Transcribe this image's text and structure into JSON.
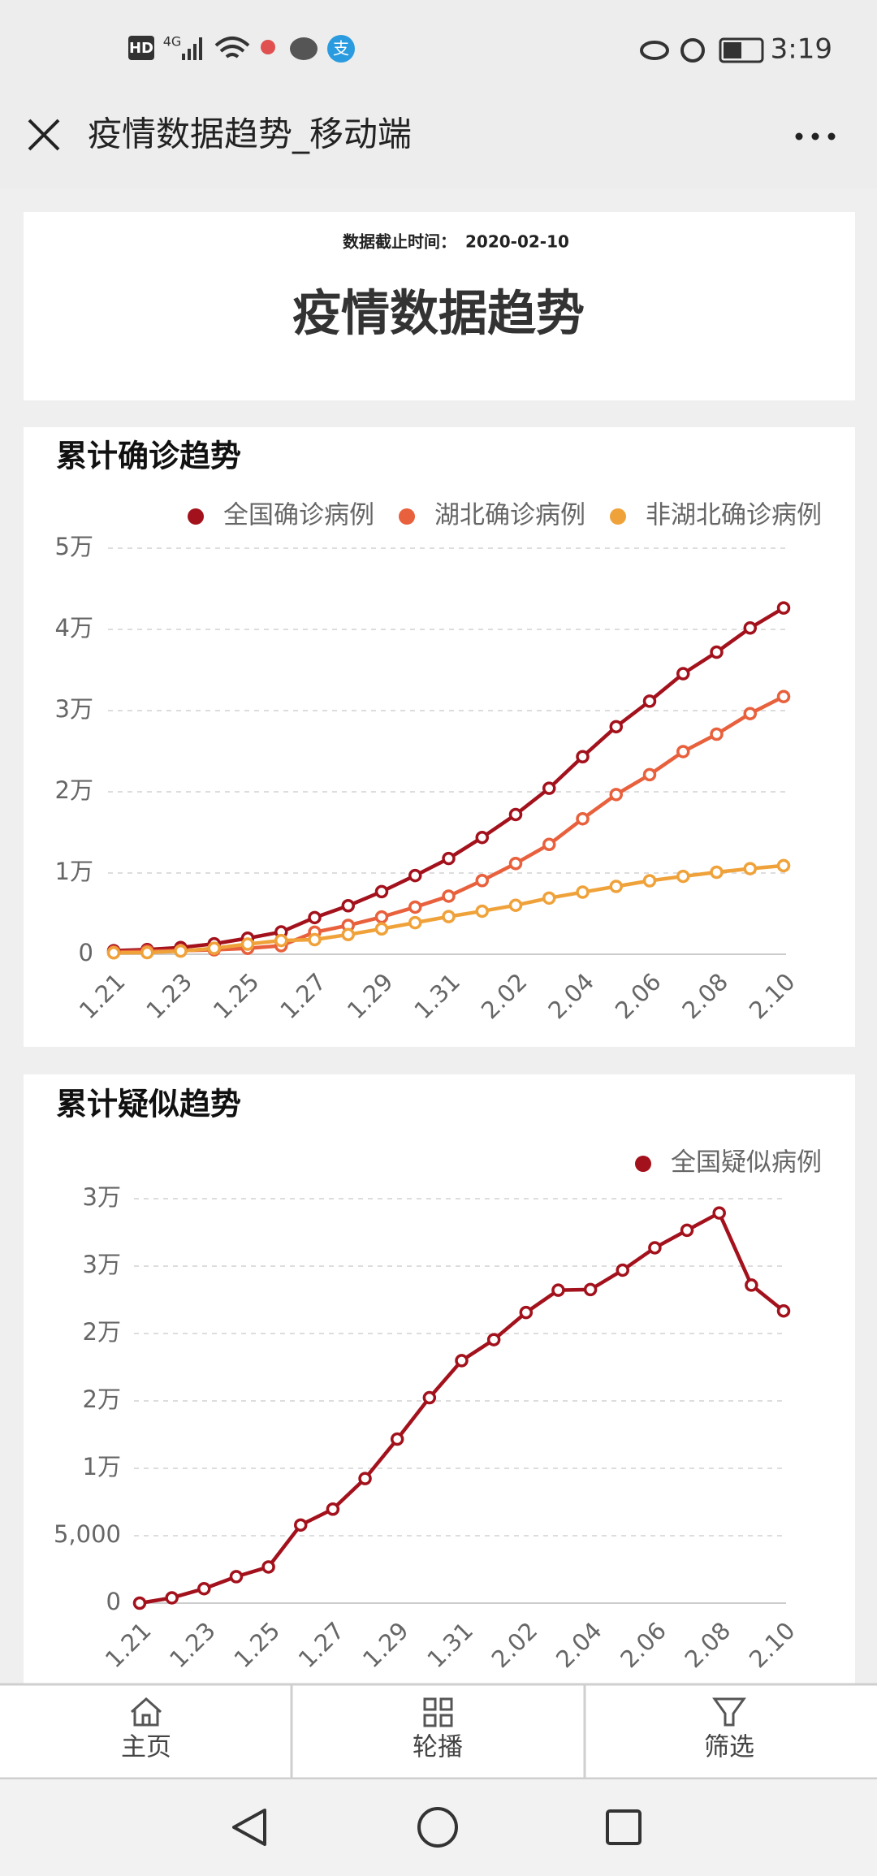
{
  "status_bar": {
    "hd": "HD",
    "network": "4G",
    "alipay": "支",
    "time": "3:19"
  },
  "nav": {
    "title": "疫情数据趋势_移动端"
  },
  "header": {
    "cutoff_label": "数据截止时间：",
    "cutoff_date": "2020-02-10",
    "title": "疫情数据趋势"
  },
  "chart_data": [
    {
      "type": "line",
      "title": "累计确诊趋势",
      "legend": "top-right",
      "grid": true,
      "categories": [
        "1.21",
        null,
        "1.23",
        null,
        "1.25",
        null,
        "1.27",
        null,
        "1.29",
        null,
        "1.31",
        null,
        "2.02",
        null,
        "2.04",
        null,
        "2.06",
        null,
        "2.08",
        null,
        "2.10"
      ],
      "ylim": [
        0,
        50000
      ],
      "yticks": [
        0,
        {
          "value": 10000,
          "label": "1万"
        },
        {
          "value": 20000,
          "label": "2万"
        },
        {
          "value": 30000,
          "label": "3万"
        },
        {
          "value": 40000,
          "label": "4万"
        },
        {
          "value": 50000,
          "label": "5万"
        }
      ],
      "series": [
        {
          "name": "全国确诊病例",
          "color": "#a3121c",
          "values": [
            440,
            571,
            830,
            1287,
            1975,
            2744,
            4515,
            5974,
            7711,
            9692,
            11791,
            14380,
            17205,
            20438,
            24324,
            28018,
            31161,
            34546,
            37198,
            40171,
            42638
          ]
        },
        {
          "name": "湖北确诊病例",
          "color": "#e8603c",
          "values": [
            270,
            375,
            444,
            549,
            729,
            1052,
            2714,
            3554,
            4586,
            5806,
            7153,
            9074,
            11177,
            13522,
            16678,
            19665,
            22112,
            24953,
            27100,
            29631,
            31728
          ]
        },
        {
          "name": "非湖北确诊病例",
          "color": "#f0a23a",
          "values": [
            170,
            196,
            386,
            738,
            1246,
            1692,
            1801,
            2420,
            3125,
            3886,
            4638,
            5306,
            6028,
            6916,
            7646,
            8353,
            9049,
            9593,
            10098,
            10540,
            10910
          ]
        }
      ]
    },
    {
      "type": "line",
      "title": "累计疑似趋势",
      "legend": "top-right",
      "grid": true,
      "categories": [
        "1.21",
        null,
        "1.23",
        null,
        "1.25",
        null,
        "1.27",
        null,
        "1.29",
        null,
        "1.31",
        null,
        "2.02",
        null,
        "2.04",
        null,
        "2.06",
        null,
        "2.08",
        null,
        "2.10"
      ],
      "ylim": [
        0,
        30000
      ],
      "yticks": [
        0,
        {
          "value": 5000,
          "label": "5,000"
        },
        {
          "value": 10000,
          "label": "1万"
        },
        {
          "value": 15000,
          "label": "2万"
        },
        {
          "value": 20000,
          "label": "2万"
        },
        {
          "value": 25000,
          "label": "3万"
        },
        {
          "value": 30000,
          "label": "3万"
        }
      ],
      "series": [
        {
          "name": "全国疑似病例",
          "color": "#a3121c",
          "values": [
            0,
            393,
            1072,
            1965,
            2684,
            5794,
            6973,
            9239,
            12167,
            15238,
            17988,
            19544,
            21558,
            23214,
            23260,
            24702,
            26359,
            27657,
            28942,
            23589,
            21675
          ]
        }
      ]
    }
  ],
  "tabs": [
    "主页",
    "轮播",
    "筛选"
  ]
}
